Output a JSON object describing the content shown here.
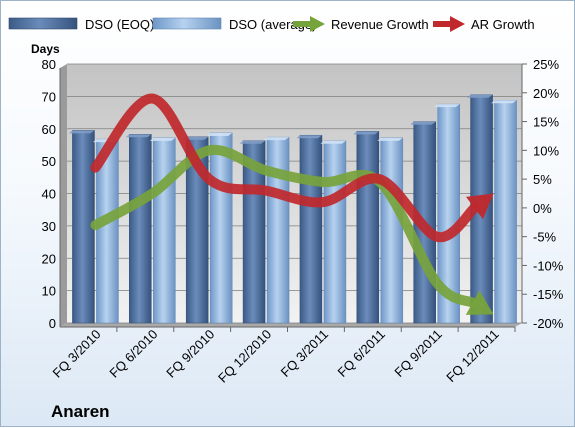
{
  "chart_data": {
    "type": "bar",
    "title": "",
    "company": "Anaren",
    "y_left_label": "Days",
    "y_left_lim": [
      0,
      80
    ],
    "y_left_ticks": [
      "0",
      "10",
      "20",
      "30",
      "40",
      "50",
      "60",
      "70",
      "80"
    ],
    "y_right_lim": [
      -20,
      25
    ],
    "y_right_ticks": [
      "-20%",
      "-15%",
      "-10%",
      "-5%",
      "0%",
      "5%",
      "10%",
      "15%",
      "20%",
      "25%"
    ],
    "categories": [
      "FQ 3/2010",
      "FQ 6/2010",
      "FQ 9/2010",
      "FQ 12/2010",
      "FQ 3/2011",
      "FQ 6/2011",
      "FQ 9/2011",
      "FQ 12/2011"
    ],
    "series": [
      {
        "name": "DSO (EOQ)",
        "kind": "bar",
        "axis": "left",
        "color": "#4a6a96",
        "values": [
          59.5,
          58.3,
          57.5,
          56.3,
          58.0,
          59.2,
          62.2,
          70.5
        ]
      },
      {
        "name": "DSO (average)",
        "kind": "bar",
        "axis": "left",
        "color": "#8fb4de",
        "values": [
          56.8,
          57.2,
          58.7,
          57.4,
          56.3,
          57.2,
          67.6,
          68.8
        ]
      },
      {
        "name": "Revenue Growth",
        "kind": "arrow",
        "axis": "right",
        "color": "#77a33c",
        "values": [
          -3.0,
          2.5,
          10.0,
          6.5,
          4.5,
          4.5,
          -13.0,
          -18.5
        ]
      },
      {
        "name": "AR Growth",
        "kind": "arrow",
        "axis": "right",
        "color": "#c0282c",
        "values": [
          7.0,
          19.0,
          5.0,
          3.0,
          1.0,
          5.0,
          -5.0,
          2.5
        ]
      }
    ],
    "grid": "horizontal",
    "legend": "top"
  }
}
